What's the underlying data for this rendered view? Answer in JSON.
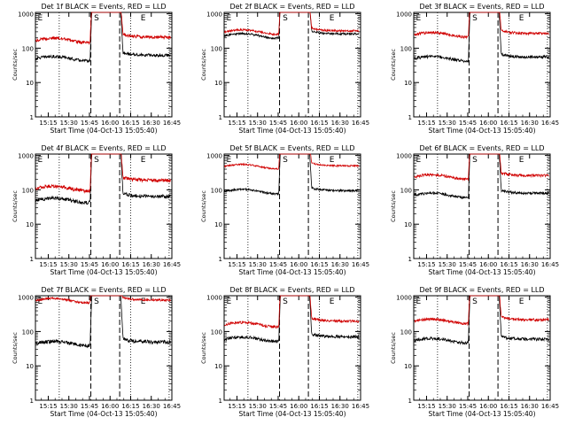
{
  "figure": {
    "colors": {
      "events": "#000000",
      "lld": "#d00000",
      "axes": "#000000",
      "background": "#ffffff"
    },
    "xlabel": "Start Time (04-Oct-13 15:05:40)",
    "ylabel": "Counts/sec",
    "x_tick_labels": [
      "15:15",
      "15:30",
      "15:45",
      "16:00",
      "16:15",
      "16:30",
      "16:45"
    ],
    "y_tick_labels": [
      "1",
      "10",
      "100",
      "1000"
    ]
  },
  "chart_data": [
    {
      "type": "line",
      "title": "Det 1f BLACK = Events, RED = LLD",
      "xlim": [
        "15:05:40",
        "16:45:00"
      ],
      "ylim": [
        1,
        1100
      ],
      "yscale": "log",
      "markers": [
        {
          "label": "E",
          "x": "15:06"
        },
        {
          "label": "S",
          "x": "15:47"
        },
        {
          "label": "E",
          "x": "16:21"
        }
      ],
      "dotted_lines": [
        "15:23",
        "16:15",
        "16:43"
      ],
      "dashed_lines": [
        "15:46",
        "16:07"
      ],
      "series": [
        {
          "name": "Events",
          "color": "#000000",
          "shape": "orbit",
          "pre": 50,
          "post": 62,
          "noise": 0.06
        },
        {
          "name": "LLD",
          "color": "#d00000",
          "shape": "orbit",
          "pre": 170,
          "post": 210,
          "noise": 0.06
        }
      ]
    },
    {
      "type": "line",
      "title": "Det 2f BLACK = Events, RED = LLD",
      "xlim": [
        "15:05:40",
        "16:45:00"
      ],
      "ylim": [
        1,
        1100
      ],
      "yscale": "log",
      "markers": [
        {
          "label": "E",
          "x": "15:06"
        },
        {
          "label": "S",
          "x": "15:47"
        },
        {
          "label": "E",
          "x": "16:21"
        }
      ],
      "dotted_lines": [
        "15:23",
        "16:15",
        "16:43"
      ],
      "dashed_lines": [
        "15:46",
        "16:07"
      ],
      "series": [
        {
          "name": "Events",
          "color": "#000000",
          "shape": "orbit",
          "pre": 230,
          "post": 260,
          "noise": 0.04
        },
        {
          "name": "LLD",
          "color": "#d00000",
          "shape": "orbit",
          "pre": 300,
          "post": 320,
          "noise": 0.04
        }
      ]
    },
    {
      "type": "line",
      "title": "Det 3f BLACK = Events, RED = LLD",
      "xlim": [
        "15:05:40",
        "16:45:00"
      ],
      "ylim": [
        1,
        1100
      ],
      "yscale": "log",
      "markers": [
        {
          "label": "E",
          "x": "15:06"
        },
        {
          "label": "S",
          "x": "15:47"
        },
        {
          "label": "E",
          "x": "16:21"
        }
      ],
      "dotted_lines": [
        "15:23",
        "16:15",
        "16:43"
      ],
      "dashed_lines": [
        "15:46",
        "16:07"
      ],
      "series": [
        {
          "name": "Events",
          "color": "#000000",
          "shape": "orbit",
          "pre": 50,
          "post": 55,
          "noise": 0.06
        },
        {
          "name": "LLD",
          "color": "#d00000",
          "shape": "orbit",
          "pre": 250,
          "post": 270,
          "noise": 0.05
        }
      ]
    },
    {
      "type": "line",
      "title": "Det 4f BLACK = Events, RED = LLD",
      "xlim": [
        "15:05:40",
        "16:45:00"
      ],
      "ylim": [
        1,
        1100
      ],
      "yscale": "log",
      "markers": [
        {
          "label": "E",
          "x": "15:06"
        },
        {
          "label": "S",
          "x": "15:47"
        },
        {
          "label": "E",
          "x": "16:21"
        }
      ],
      "dotted_lines": [
        "15:23",
        "16:15",
        "16:43"
      ],
      "dashed_lines": [
        "15:46",
        "16:07"
      ],
      "series": [
        {
          "name": "Events",
          "color": "#000000",
          "shape": "orbit",
          "pre": 50,
          "post": 65,
          "noise": 0.07
        },
        {
          "name": "LLD",
          "color": "#d00000",
          "shape": "orbit",
          "pre": 110,
          "post": 190,
          "noise": 0.07
        }
      ]
    },
    {
      "type": "line",
      "title": "Det 5f BLACK = Events, RED = LLD",
      "xlim": [
        "15:05:40",
        "16:45:00"
      ],
      "ylim": [
        1,
        1100
      ],
      "yscale": "log",
      "markers": [
        {
          "label": "E",
          "x": "15:06"
        },
        {
          "label": "S",
          "x": "15:47"
        },
        {
          "label": "E",
          "x": "16:21"
        }
      ],
      "dotted_lines": [
        "15:23",
        "16:15",
        "16:43"
      ],
      "dashed_lines": [
        "15:46",
        "16:07"
      ],
      "series": [
        {
          "name": "Events",
          "color": "#000000",
          "shape": "orbit",
          "pre": 90,
          "post": 95,
          "noise": 0.04
        },
        {
          "name": "LLD",
          "color": "#d00000",
          "shape": "orbit",
          "pre": 480,
          "post": 500,
          "noise": 0.03
        }
      ]
    },
    {
      "type": "line",
      "title": "Det 6f BLACK = Events, RED = LLD",
      "xlim": [
        "15:05:40",
        "16:45:00"
      ],
      "ylim": [
        1,
        1100
      ],
      "yscale": "log",
      "markers": [
        {
          "label": "E",
          "x": "15:06"
        },
        {
          "label": "S",
          "x": "15:47"
        },
        {
          "label": "E",
          "x": "16:21"
        }
      ],
      "dotted_lines": [
        "15:23",
        "16:15",
        "16:43"
      ],
      "dashed_lines": [
        "15:46",
        "16:07"
      ],
      "series": [
        {
          "name": "Events",
          "color": "#000000",
          "shape": "orbit",
          "pre": 70,
          "post": 80,
          "noise": 0.05
        },
        {
          "name": "LLD",
          "color": "#d00000",
          "shape": "orbit",
          "pre": 240,
          "post": 260,
          "noise": 0.05
        }
      ]
    },
    {
      "type": "line",
      "title": "Det 7f BLACK = Events, RED = LLD",
      "xlim": [
        "15:05:40",
        "16:45:00"
      ],
      "ylim": [
        1,
        1100
      ],
      "yscale": "log",
      "markers": [
        {
          "label": "E",
          "x": "15:06"
        },
        {
          "label": "S",
          "x": "15:47"
        },
        {
          "label": "E",
          "x": "16:21"
        }
      ],
      "dotted_lines": [
        "15:23",
        "16:15",
        "16:43"
      ],
      "dashed_lines": [
        "15:46",
        "16:07"
      ],
      "series": [
        {
          "name": "Events",
          "color": "#000000",
          "shape": "orbit",
          "pre": 45,
          "post": 50,
          "noise": 0.07
        },
        {
          "name": "LLD",
          "color": "#d00000",
          "shape": "orbit",
          "pre": 800,
          "post": 820,
          "noise": 0.04
        }
      ]
    },
    {
      "type": "line",
      "title": "Det 8f BLACK = Events, RED = LLD",
      "xlim": [
        "15:05:40",
        "16:45:00"
      ],
      "ylim": [
        1,
        1100
      ],
      "yscale": "log",
      "markers": [
        {
          "label": "E",
          "x": "15:06"
        },
        {
          "label": "S",
          "x": "15:47"
        },
        {
          "label": "E",
          "x": "16:21"
        }
      ],
      "dotted_lines": [
        "15:23",
        "16:15",
        "16:43"
      ],
      "dashed_lines": [
        "15:46",
        "16:07"
      ],
      "series": [
        {
          "name": "Events",
          "color": "#000000",
          "shape": "orbit",
          "pre": 60,
          "post": 70,
          "noise": 0.06
        },
        {
          "name": "LLD",
          "color": "#d00000",
          "shape": "orbit",
          "pre": 160,
          "post": 200,
          "noise": 0.05
        }
      ]
    },
    {
      "type": "line",
      "title": "Det 9f BLACK = Events, RED = LLD",
      "xlim": [
        "15:05:40",
        "16:45:00"
      ],
      "ylim": [
        1,
        1100
      ],
      "yscale": "log",
      "markers": [
        {
          "label": "E",
          "x": "15:06"
        },
        {
          "label": "S",
          "x": "15:47"
        },
        {
          "label": "E",
          "x": "16:21"
        }
      ],
      "dotted_lines": [
        "15:23",
        "16:15",
        "16:43"
      ],
      "dashed_lines": [
        "15:46",
        "16:07"
      ],
      "series": [
        {
          "name": "Events",
          "color": "#000000",
          "shape": "orbit",
          "pre": 55,
          "post": 60,
          "noise": 0.06
        },
        {
          "name": "LLD",
          "color": "#d00000",
          "shape": "orbit",
          "pre": 200,
          "post": 220,
          "noise": 0.05
        }
      ]
    }
  ]
}
